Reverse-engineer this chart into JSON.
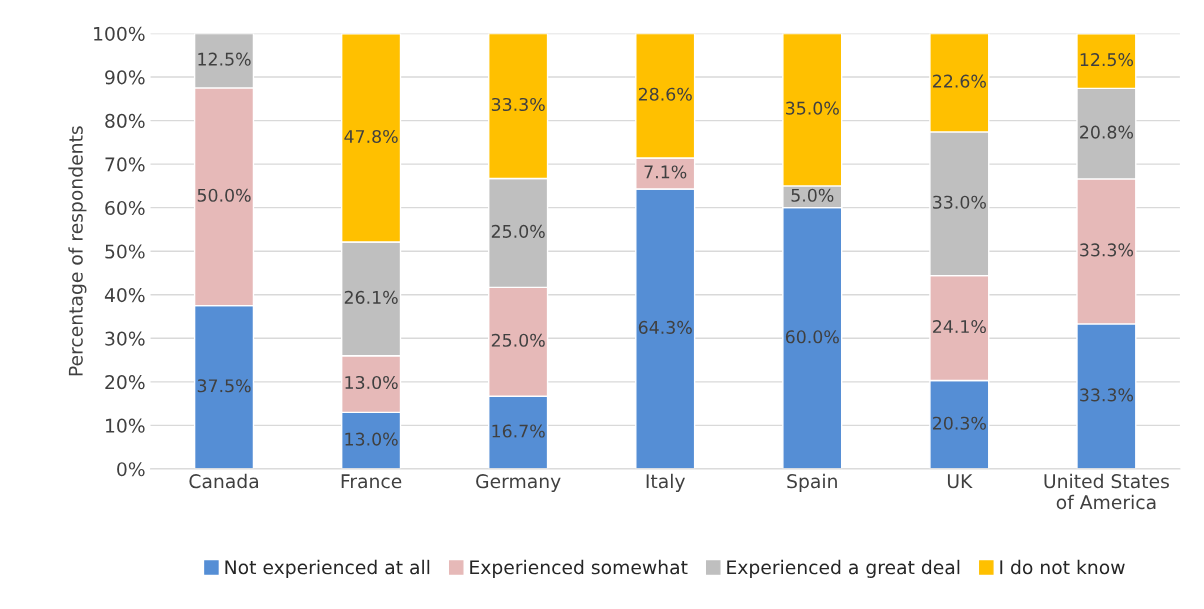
{
  "chart_data": {
    "type": "bar",
    "stacked": true,
    "ylabel": "Percentage of respondents",
    "categories": [
      "Canada",
      "France",
      "Germany",
      "Italy",
      "Spain",
      "UK",
      "United States of America"
    ],
    "series": [
      {
        "name": "Not experienced at all",
        "color": "#558ed5",
        "values": [
          37.5,
          13.0,
          16.7,
          64.3,
          60.0,
          20.3,
          33.3
        ],
        "value_labels": [
          "37.5%",
          "13.0%",
          "16.7%",
          "64.3%",
          "60.0%",
          "20.3%",
          "33.3%"
        ]
      },
      {
        "name": "Experienced somewhat",
        "color": "#e6b9b8",
        "values": [
          50.0,
          13.0,
          25.0,
          7.1,
          null,
          24.1,
          33.3
        ],
        "value_labels": [
          "50.0%",
          "13.0%",
          "25.0%",
          "7.1%",
          null,
          "24.1%",
          "33.3%"
        ]
      },
      {
        "name": "Experienced a great deal",
        "color": "#bfbfbf",
        "values": [
          12.5,
          26.1,
          25.0,
          null,
          5.0,
          33.0,
          20.8
        ],
        "value_labels": [
          "12.5%",
          "26.1%",
          "25.0%",
          null,
          "5.0%",
          "33.0%",
          "20.8%"
        ]
      },
      {
        "name": "I do not know",
        "color": "#ffc000",
        "values": [
          null,
          47.8,
          33.3,
          28.6,
          35.0,
          22.6,
          12.5
        ],
        "value_labels": [
          null,
          "47.8%",
          "33.3%",
          "28.6%",
          "35.0%",
          "22.6%",
          "12.5%"
        ]
      }
    ],
    "ylim": [
      0,
      100
    ],
    "yticks": [
      {
        "value": 0,
        "label": "0%"
      },
      {
        "value": 10,
        "label": "10%"
      },
      {
        "value": 20,
        "label": "20%"
      },
      {
        "value": 30,
        "label": "30%"
      },
      {
        "value": 40,
        "label": "40%"
      },
      {
        "value": 50,
        "label": "50%"
      },
      {
        "value": 60,
        "label": "60%"
      },
      {
        "value": 70,
        "label": "70%"
      },
      {
        "value": 80,
        "label": "80%"
      },
      {
        "value": 90,
        "label": "90%"
      },
      {
        "value": 100,
        "label": "100%"
      }
    ],
    "grid": "y",
    "legend": "bottom"
  }
}
